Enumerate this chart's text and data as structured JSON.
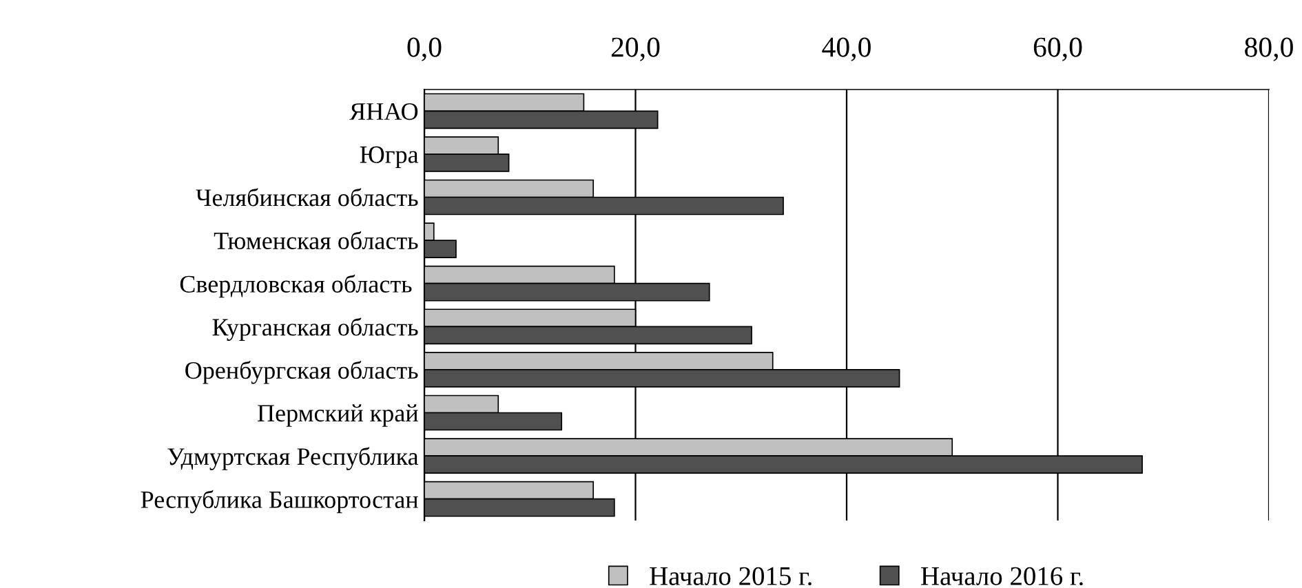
{
  "chart_data": {
    "type": "bar",
    "orientation": "horizontal",
    "categories": [
      "ЯНАО",
      "Югра",
      "Челябинская область",
      "Тюменская область",
      "Свердловская область ",
      "Курганская область",
      "Оренбургская область",
      "Пермский край",
      "Удмуртская Республика",
      "Республика Башкортостан"
    ],
    "series": [
      {
        "name": "Начало 2015 г.",
        "color": "#c0c0c0",
        "values": [
          15.1,
          7.0,
          16.0,
          0.9,
          18.0,
          20.0,
          33.0,
          7.0,
          50.0,
          16.0
        ]
      },
      {
        "name": "Начало 2016 г.",
        "color": "#505050",
        "values": [
          22.1,
          8.0,
          34.0,
          3.0,
          27.0,
          31.0,
          45.0,
          13.0,
          68.0,
          18.0
        ]
      }
    ],
    "xlim": [
      0,
      80
    ],
    "xticks": [
      {
        "value": 0,
        "label": "0,0"
      },
      {
        "value": 20,
        "label": "20,0"
      },
      {
        "value": 40,
        "label": "40,0"
      },
      {
        "value": 60,
        "label": "60,0"
      },
      {
        "value": 80,
        "label": "80,0"
      }
    ],
    "grid": "x",
    "legend": "bottom"
  }
}
